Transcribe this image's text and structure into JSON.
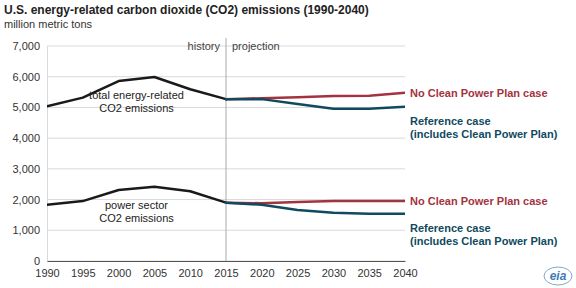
{
  "chart_data": {
    "type": "line",
    "title": "U.S. energy-related carbon dioxide (CO2) emissions (1990-2040)",
    "subtitle": "million metric tons",
    "x": [
      1990,
      1995,
      2000,
      2005,
      2010,
      2015,
      2020,
      2025,
      2030,
      2035,
      2040
    ],
    "xlim": [
      1990,
      2040
    ],
    "xticks": [
      1990,
      1995,
      2000,
      2005,
      2010,
      2015,
      2020,
      2025,
      2030,
      2035,
      2040
    ],
    "ylim": [
      0,
      7000
    ],
    "yticks": [
      0,
      {
        "value": 1000,
        "label": "1,000"
      },
      {
        "value": 2000,
        "label": "2,000"
      },
      {
        "value": 3000,
        "label": "3,000"
      },
      {
        "value": 4000,
        "label": "4,000"
      },
      {
        "value": 5000,
        "label": "5,000"
      },
      {
        "value": 6000,
        "label": "6,000"
      },
      {
        "value": 7000,
        "label": "7,000"
      }
    ],
    "grid": true,
    "divider": {
      "x": 2015,
      "labels": [
        "history",
        "projection"
      ]
    },
    "series": [
      {
        "label": [
          "total energy-related",
          "CO2 emissions"
        ],
        "color": "#1a1a1a",
        "values": [
          5040,
          5320,
          5860,
          5990,
          5590,
          5270,
          null,
          null,
          null,
          null,
          null
        ]
      },
      {
        "label": [
          "power sector",
          "CO2 emissions"
        ],
        "color": "#1a1a1a",
        "values": [
          1830,
          1950,
          2310,
          2420,
          2270,
          1900,
          null,
          null,
          null,
          null,
          null
        ]
      },
      {
        "label": [
          "No Clean Power Plan case"
        ],
        "color": "#a33340",
        "values": [
          null,
          null,
          null,
          null,
          null,
          5270,
          5300,
          5330,
          5370,
          5380,
          5480
        ]
      },
      {
        "label": [
          "Reference case",
          "(includes Clean Power Plan)"
        ],
        "color": "#0f4a5e",
        "values": [
          null,
          null,
          null,
          null,
          null,
          5270,
          5270,
          5110,
          4960,
          4960,
          5020
        ]
      },
      {
        "label": [
          "No Clean Power Plan case"
        ],
        "color": "#a33340",
        "values": [
          null,
          null,
          null,
          null,
          null,
          1900,
          1880,
          1920,
          1950,
          1950,
          1950
        ]
      },
      {
        "label": [
          "Reference case",
          "(includes Clean Power Plan)"
        ],
        "color": "#0f4a5e",
        "values": [
          null,
          null,
          null,
          null,
          null,
          1900,
          1830,
          1660,
          1570,
          1540,
          1540
        ]
      }
    ],
    "logo": "eia"
  }
}
